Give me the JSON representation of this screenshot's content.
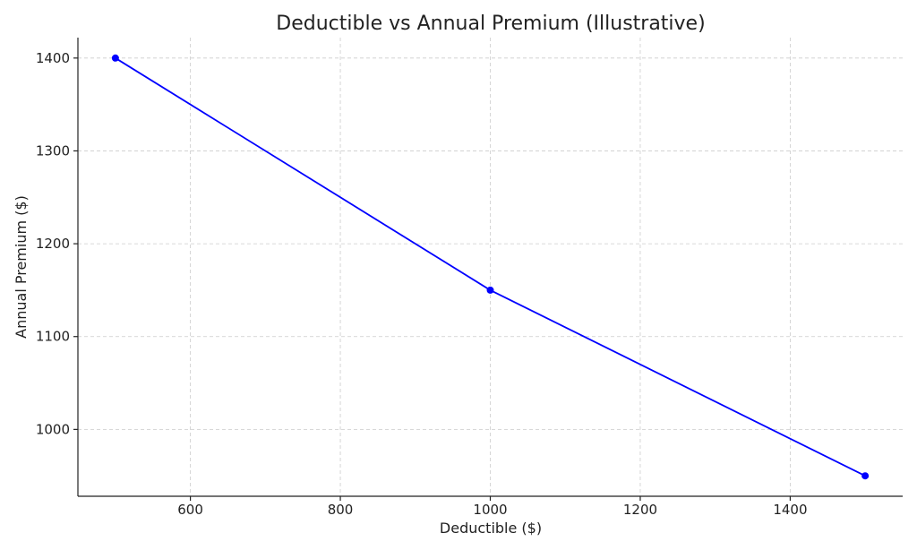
{
  "chart_data": {
    "type": "line",
    "title": "Deductible vs Annual Premium (Illustrative)",
    "xlabel": "Deductible ($)",
    "ylabel": "Annual Premium ($)",
    "x": [
      500,
      1000,
      1500
    ],
    "series": [
      {
        "values": [
          1400,
          1150,
          950
        ]
      }
    ],
    "xlim": [
      450,
      1550
    ],
    "ylim": [
      928,
      1422
    ],
    "xticks": [
      600,
      800,
      1000,
      1200,
      1400
    ],
    "yticks": [
      1000,
      1100,
      1200,
      1300,
      1400
    ],
    "xtick_labels": [
      "600",
      "800",
      "1000",
      "1200",
      "1400"
    ],
    "ytick_labels": [
      "1000",
      "1100",
      "1200",
      "1300",
      "1400"
    ],
    "grid": true,
    "line_color": "#0000ff",
    "marker": "circle"
  }
}
